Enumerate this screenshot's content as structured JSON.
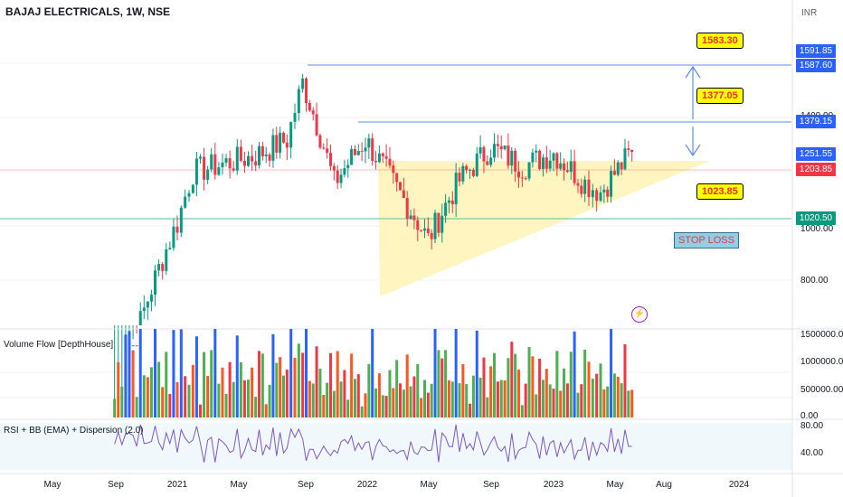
{
  "header": {
    "title": "BAJAJ ELECTRICALS, 1W, NSE",
    "currency": "INR"
  },
  "price_scale_labels": [
    "1400.00",
    "1000.00",
    "800.00"
  ],
  "price_tags": [
    {
      "text": "1591.85",
      "color": "#2962ff"
    },
    {
      "text": "1587.60",
      "color": "#2962ff"
    },
    {
      "text": "1379.15",
      "color": "#2962ff"
    },
    {
      "text": "1251.55",
      "color": "#2962ff"
    },
    {
      "text": "1203.85",
      "color": "#f23645"
    },
    {
      "text": "1020.50",
      "color": "#089981"
    }
  ],
  "callouts": {
    "target1": "1583.30",
    "target2": "1377.05",
    "support": "1023.85",
    "stop_loss": "STOP LOSS"
  },
  "panes": {
    "volume_label": "Volume Flow [DepthHouse]",
    "volume_scale": [
      "1500000.00",
      "1000000.00",
      "500000.00",
      "0.00"
    ],
    "rsi_label": "RSI + BB (EMA) + Dispersion (2.0)",
    "rsi_scale": [
      "80.00",
      "40.00"
    ]
  },
  "time_axis": [
    "May",
    "Sep",
    "2021",
    "May",
    "Sep",
    "2022",
    "May",
    "Sep",
    "2023",
    "May",
    "Aug",
    "2024"
  ],
  "colors": {
    "up": "#089981",
    "down": "#f23645",
    "volume_green": "#4caf50",
    "volume_orange": "#ff5722",
    "volume_red": "#f23645",
    "volume_blue": "#2962ff",
    "triangle_fill": "#fff3b0",
    "level_line": "#5b8def",
    "support_line": "#5fbf9a"
  },
  "chart_data": {
    "type": "candlestick",
    "title": "BAJAJ ELECTRICALS, 1W, NSE",
    "interval": "1W",
    "ylim": [
      660,
      1640
    ],
    "key_levels": {
      "upper_target": 1587.6,
      "mid_target": 1379.15,
      "current": 1203.85,
      "support": 1020.5
    },
    "close_path": [
      {
        "date": "2020-09",
        "close": 520
      },
      {
        "date": "2021-01",
        "close": 960
      },
      {
        "date": "2021-02",
        "close": 1130
      },
      {
        "date": "2021-06",
        "close": 1190
      },
      {
        "date": "2021-08",
        "close": 1250
      },
      {
        "date": "2021-09",
        "close": 1500
      },
      {
        "date": "2021-11",
        "close": 1090
      },
      {
        "date": "2022-01",
        "close": 1250
      },
      {
        "date": "2022-03",
        "close": 1070
      },
      {
        "date": "2022-05",
        "close": 910
      },
      {
        "date": "2022-07",
        "close": 1100
      },
      {
        "date": "2022-09",
        "close": 1220
      },
      {
        "date": "2022-11",
        "close": 1150
      },
      {
        "date": "2023-01",
        "close": 1200
      },
      {
        "date": "2023-03",
        "close": 1090
      },
      {
        "date": "2023-04",
        "close": 1060
      },
      {
        "date": "2023-06",
        "close": 1203.85
      }
    ]
  }
}
